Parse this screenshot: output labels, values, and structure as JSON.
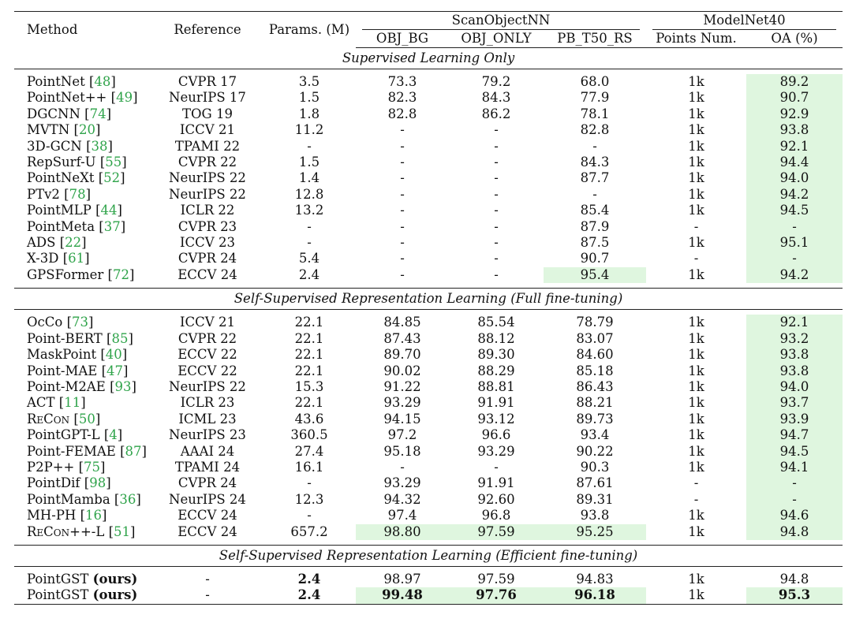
{
  "header": {
    "method": "Method",
    "reference": "Reference",
    "params": "Params. (M)",
    "scanobjectnn": "ScanObjectNN",
    "modelnet40": "ModelNet40",
    "obj_bg": "OBJ_BG",
    "obj_only": "OBJ_ONLY",
    "pb_t50_rs": "PB_T50_RS",
    "points_num": "Points Num.",
    "oa": "OA (%)"
  },
  "sections": [
    {
      "title": "Supervised Learning Only",
      "rows": [
        {
          "name": "PointNet",
          "cite": "48",
          "ref": "CVPR 17",
          "params": "3.5",
          "bg": "73.3",
          "only": "79.2",
          "pb": "68.0",
          "pts": "1k",
          "oa": "89.2"
        },
        {
          "name": "PointNet++",
          "cite": "49",
          "ref": "NeurIPS 17",
          "params": "1.5",
          "bg": "82.3",
          "only": "84.3",
          "pb": "77.9",
          "pts": "1k",
          "oa": "90.7"
        },
        {
          "name": "DGCNN",
          "cite": "74",
          "ref": "TOG 19",
          "params": "1.8",
          "bg": "82.8",
          "only": "86.2",
          "pb": "78.1",
          "pts": "1k",
          "oa": "92.9"
        },
        {
          "name": "MVTN",
          "cite": "20",
          "ref": "ICCV 21",
          "params": "11.2",
          "bg": "-",
          "only": "-",
          "pb": "82.8",
          "pts": "1k",
          "oa": "93.8"
        },
        {
          "name": "3D-GCN",
          "cite": "38",
          "ref": "TPAMI 22",
          "params": "-",
          "bg": "-",
          "only": "-",
          "pb": "-",
          "pts": "1k",
          "oa": "92.1"
        },
        {
          "name": "RepSurf-U",
          "cite": "55",
          "ref": "CVPR 22",
          "params": "1.5",
          "bg": "-",
          "only": "-",
          "pb": "84.3",
          "pts": "1k",
          "oa": "94.4"
        },
        {
          "name": "PointNeXt",
          "cite": "52",
          "ref": "NeurIPS 22",
          "params": "1.4",
          "bg": "-",
          "only": "-",
          "pb": "87.7",
          "pts": "1k",
          "oa": "94.0"
        },
        {
          "name": "PTv2",
          "cite": "78",
          "ref": "NeurIPS 22",
          "params": "12.8",
          "bg": "-",
          "only": "-",
          "pb": "-",
          "pts": "1k",
          "oa": "94.2"
        },
        {
          "name": "PointMLP",
          "cite": "44",
          "ref": "ICLR 22",
          "params": "13.2",
          "bg": "-",
          "only": "-",
          "pb": "85.4",
          "pts": "1k",
          "oa": "94.5"
        },
        {
          "name": "PointMeta",
          "cite": "37",
          "ref": "CVPR 23",
          "params": "-",
          "bg": "-",
          "only": "-",
          "pb": "87.9",
          "pts": "-",
          "oa": "-"
        },
        {
          "name": "ADS",
          "cite": "22",
          "ref": "ICCV 23",
          "params": "-",
          "bg": "-",
          "only": "-",
          "pb": "87.5",
          "pts": "1k",
          "oa": "95.1"
        },
        {
          "name": "X-3D",
          "cite": "61",
          "ref": "CVPR 24",
          "params": "5.4",
          "bg": "-",
          "only": "-",
          "pb": "90.7",
          "pts": "-",
          "oa": "-"
        },
        {
          "name": "GPSFormer",
          "cite": "72",
          "ref": "ECCV 24",
          "params": "2.4",
          "bg": "-",
          "only": "-",
          "pb": "95.4",
          "pts": "1k",
          "oa": "94.2",
          "pb_hl": true
        }
      ]
    },
    {
      "title": "Self-Supervised Representation Learning (Full fine-tuning)",
      "rows": [
        {
          "name": "OcCo",
          "cite": "73",
          "ref": "ICCV 21",
          "params": "22.1",
          "bg": "84.85",
          "only": "85.54",
          "pb": "78.79",
          "pts": "1k",
          "oa": "92.1"
        },
        {
          "name": "Point-BERT",
          "cite": "85",
          "ref": "CVPR 22",
          "params": "22.1",
          "bg": "87.43",
          "only": "88.12",
          "pb": "83.07",
          "pts": "1k",
          "oa": "93.2"
        },
        {
          "name": "MaskPoint",
          "cite": "40",
          "ref": "ECCV 22",
          "params": "22.1",
          "bg": "89.70",
          "only": "89.30",
          "pb": "84.60",
          "pts": "1k",
          "oa": "93.8"
        },
        {
          "name": "Point-MAE",
          "cite": "47",
          "ref": "ECCV 22",
          "params": "22.1",
          "bg": "90.02",
          "only": "88.29",
          "pb": "85.18",
          "pts": "1k",
          "oa": "93.8"
        },
        {
          "name": "Point-M2AE",
          "cite": "93",
          "ref": "NeurIPS 22",
          "params": "15.3",
          "bg": "91.22",
          "only": "88.81",
          "pb": "86.43",
          "pts": "1k",
          "oa": "94.0"
        },
        {
          "name": "ACT",
          "cite": "11",
          "ref": "ICLR 23",
          "params": "22.1",
          "bg": "93.29",
          "only": "91.91",
          "pb": "88.21",
          "pts": "1k",
          "oa": "93.7"
        },
        {
          "name": "ReCon",
          "cite": "50",
          "ref": "ICML 23",
          "params": "43.6",
          "bg": "94.15",
          "only": "93.12",
          "pb": "89.73",
          "pts": "1k",
          "oa": "93.9",
          "sc": true
        },
        {
          "name": "PointGPT-L",
          "cite": "4",
          "ref": "NeurIPS 23",
          "params": "360.5",
          "bg": "97.2",
          "only": "96.6",
          "pb": "93.4",
          "pts": "1k",
          "oa": "94.7"
        },
        {
          "name": "Point-FEMAE",
          "cite": "87",
          "ref": "AAAI 24",
          "params": "27.4",
          "bg": "95.18",
          "only": "93.29",
          "pb": "90.22",
          "pts": "1k",
          "oa": "94.5"
        },
        {
          "name": "P2P++",
          "cite": "75",
          "ref": "TPAMI 24",
          "params": "16.1",
          "bg": "-",
          "only": "-",
          "pb": "90.3",
          "pts": "1k",
          "oa": "94.1"
        },
        {
          "name": "PointDif",
          "cite": "98",
          "ref": "CVPR 24",
          "params": "-",
          "bg": "93.29",
          "only": "91.91",
          "pb": "87.61",
          "pts": "-",
          "oa": "-"
        },
        {
          "name": "PointMamba",
          "cite": "36",
          "ref": "NeurIPS 24",
          "params": "12.3",
          "bg": "94.32",
          "only": "92.60",
          "pb": "89.31",
          "pts": "-",
          "oa": "-"
        },
        {
          "name": "MH-PH",
          "cite": "16",
          "ref": "ECCV 24",
          "params": "-",
          "bg": "97.4",
          "only": "96.8",
          "pb": "93.8",
          "pts": "1k",
          "oa": "94.6"
        },
        {
          "name": "ReCon++-L",
          "cite": "51",
          "ref": "ECCV 24",
          "params": "657.2",
          "bg": "98.80",
          "only": "97.59",
          "pb": "95.25",
          "pts": "1k",
          "oa": "94.8",
          "sc": true,
          "bg_hl": true,
          "only_hl": true,
          "pb_hl": true
        }
      ]
    },
    {
      "title": "Self-Supervised Representation Learning (Efficient fine-tuning)",
      "rows": [
        {
          "name": "PointGST",
          "ours": "(ours)",
          "ref": "-",
          "params": "2.4",
          "bg": "98.97",
          "only": "97.59",
          "pb": "94.83",
          "pts": "1k",
          "oa": "94.8",
          "bold_params": true,
          "no_oa_hl": true
        },
        {
          "name": "PointGST",
          "ours": "(ours)",
          "ref": "-",
          "params": "2.4",
          "bg": "99.48",
          "only": "97.76",
          "pb": "96.18",
          "pts": "1k",
          "oa": "95.3",
          "bold_params": true,
          "bold_vals": true,
          "bg_hl": true,
          "only_hl": true,
          "pb_hl": true
        }
      ]
    }
  ],
  "colors": {
    "highlight": "#dff6df",
    "citation": "#2fa34a"
  }
}
